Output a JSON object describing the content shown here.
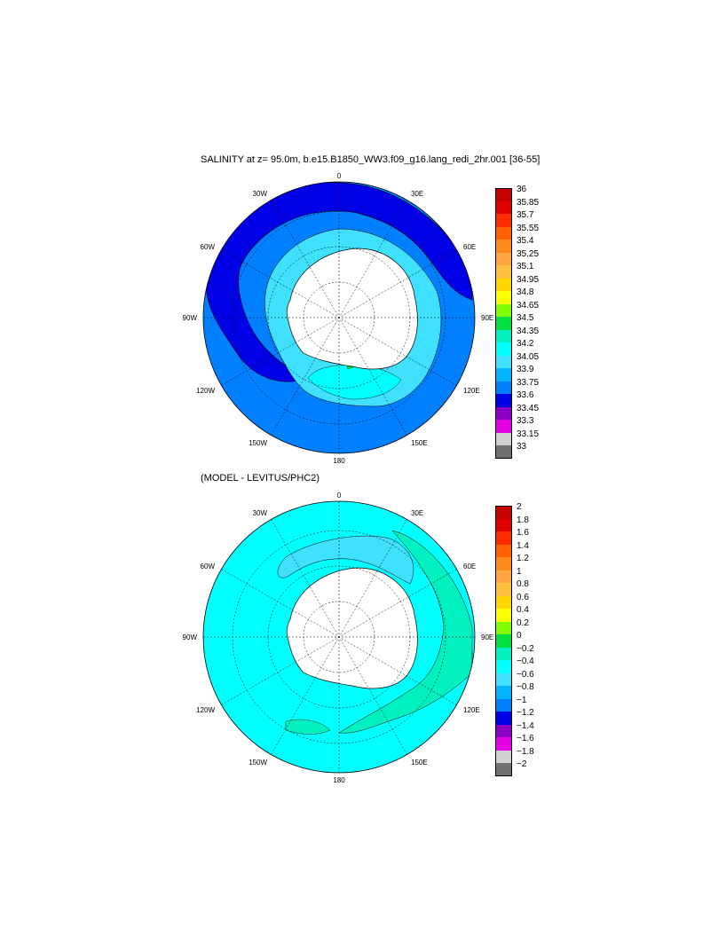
{
  "panels": [
    {
      "title": "SALINITY at z=  95.0m, b.e15.B1850_WW3.f09_g16.lang_redi_2hr.001 [36-55]",
      "lon_labels": [
        "0",
        "30E",
        "60E",
        "90E",
        "120E",
        "150E",
        "180",
        "150W",
        "120W",
        "90W",
        "60W",
        "30W"
      ],
      "colorbar_labels": [
        "36",
        "35.85",
        "35.7",
        "35.55",
        "35.4",
        "35.25",
        "35.1",
        "34.95",
        "34.8",
        "34.65",
        "34.5",
        "34.35",
        "34.2",
        "34.05",
        "33.9",
        "33.75",
        "33.6",
        "33.45",
        "33.3",
        "33.15",
        "33"
      ]
    },
    {
      "title": "(MODEL - LEVITUS/PHC2)",
      "lon_labels": [
        "0",
        "30E",
        "60E",
        "90E",
        "120E",
        "150E",
        "180",
        "150W",
        "120W",
        "90W",
        "60W",
        "30W"
      ],
      "colorbar_labels": [
        "2",
        "1.8",
        "1.6",
        "1.4",
        "1.2",
        "1",
        "0.8",
        "0.6",
        "0.4",
        "0.2",
        "0",
        "−0.2",
        "−0.4",
        "−0.6",
        "−0.8",
        "−1",
        "−1.2",
        "−1.4",
        "−1.6",
        "−1.8",
        "−2"
      ]
    }
  ],
  "colors": {
    "palette_top_to_bottom": [
      "#c80000",
      "#e00000",
      "#ff2a00",
      "#ff6000",
      "#ff8c1a",
      "#ffa640",
      "#ffc040",
      "#ffd700",
      "#ffff00",
      "#80ff00",
      "#00e040",
      "#00f0c0",
      "#00ffff",
      "#40e0ff",
      "#00b4ff",
      "#0080ff",
      "#0000e6",
      "#8c00c8",
      "#e600e6",
      "#d0d0d0",
      "#707070"
    ],
    "land": "#ffffff",
    "salinity_open_ocean": "#0080ff",
    "salinity_acc_band": "#0000e6",
    "salinity_shelf": "#40e0ff",
    "difference_background": "#00ffff"
  }
}
